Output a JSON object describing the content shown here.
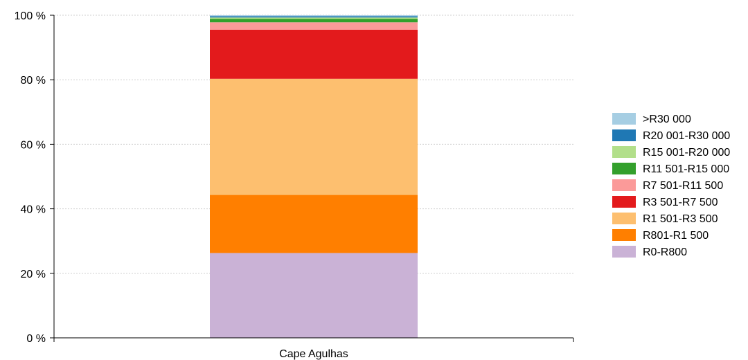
{
  "chart_data": {
    "type": "bar",
    "stacked": true,
    "percent": true,
    "categories": [
      "Cape Agulhas"
    ],
    "y_ticks": [
      "0 %",
      "20 %",
      "40 %",
      "60 %",
      "80 %",
      "100 %"
    ],
    "ylim": [
      0,
      100
    ],
    "grid": true,
    "legend_position": "right",
    "series": [
      {
        "name": "R0-R800",
        "color": "#cab2d6",
        "values": [
          26.3
        ]
      },
      {
        "name": "R801-R1 500",
        "color": "#ff7f00",
        "values": [
          18.0
        ]
      },
      {
        "name": "R1 501-R3 500",
        "color": "#fdbf6f",
        "values": [
          36.0
        ]
      },
      {
        "name": "R3 501-R7 500",
        "color": "#e31a1c",
        "values": [
          15.2
        ]
      },
      {
        "name": "R7 501-R11 500",
        "color": "#fb9a99",
        "values": [
          2.3
        ]
      },
      {
        "name": "R11 501-R15 000",
        "color": "#33a02c",
        "values": [
          1.1
        ]
      },
      {
        "name": "R15 001-R20 000",
        "color": "#b2df8a",
        "values": [
          0.4
        ]
      },
      {
        "name": "R20 001-R30 000",
        "color": "#1f78b4",
        "values": [
          0.4
        ]
      },
      {
        "name": ">R30 000",
        "color": "#a6cee3",
        "values": [
          0.3
        ]
      }
    ]
  }
}
